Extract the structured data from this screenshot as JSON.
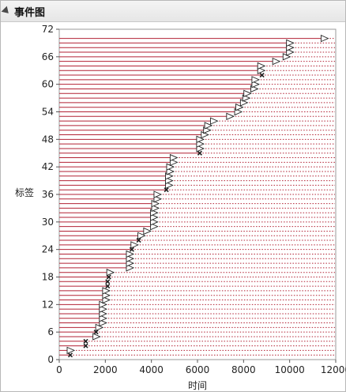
{
  "header": {
    "title": "事件图"
  },
  "chart_data": {
    "type": "event",
    "title": "事件图",
    "xlabel": "时间",
    "ylabel": "标签",
    "xlim": [
      0,
      12000
    ],
    "ylim": [
      0,
      72
    ],
    "xticks": [
      0,
      2000,
      4000,
      6000,
      8000,
      10000,
      12000
    ],
    "yticks": [
      0,
      6,
      12,
      18,
      24,
      30,
      36,
      42,
      48,
      54,
      60,
      66,
      72
    ],
    "colors": {
      "line": "#b22234",
      "dashed": "#b22234",
      "marker_stroke": "#222222"
    },
    "events": [
      {
        "label": 1,
        "start": 0,
        "end": 480,
        "marker": "x"
      },
      {
        "label": 2,
        "start": 0,
        "end": 480,
        "marker": "triangle"
      },
      {
        "label": 3,
        "start": 0,
        "end": 1150,
        "marker": "x"
      },
      {
        "label": 4,
        "start": 0,
        "end": 1150,
        "marker": "x"
      },
      {
        "label": 5,
        "start": 0,
        "end": 1600,
        "marker": "triangle"
      },
      {
        "label": 6,
        "start": 0,
        "end": 1600,
        "marker": "x"
      },
      {
        "label": 7,
        "start": 0,
        "end": 1720,
        "marker": "triangle"
      },
      {
        "label": 8,
        "start": 0,
        "end": 1880,
        "marker": "triangle"
      },
      {
        "label": 9,
        "start": 0,
        "end": 1880,
        "marker": "triangle"
      },
      {
        "label": 10,
        "start": 0,
        "end": 1880,
        "marker": "triangle"
      },
      {
        "label": 11,
        "start": 0,
        "end": 1880,
        "marker": "triangle"
      },
      {
        "label": 12,
        "start": 0,
        "end": 1880,
        "marker": "triangle"
      },
      {
        "label": 13,
        "start": 0,
        "end": 2020,
        "marker": "triangle"
      },
      {
        "label": 14,
        "start": 0,
        "end": 2020,
        "marker": "triangle"
      },
      {
        "label": 15,
        "start": 0,
        "end": 2020,
        "marker": "triangle"
      },
      {
        "label": 16,
        "start": 0,
        "end": 2100,
        "marker": "x"
      },
      {
        "label": 17,
        "start": 0,
        "end": 2100,
        "marker": "x"
      },
      {
        "label": 18,
        "start": 0,
        "end": 2150,
        "marker": "x"
      },
      {
        "label": 19,
        "start": 0,
        "end": 2200,
        "marker": "triangle"
      },
      {
        "label": 20,
        "start": 0,
        "end": 3050,
        "marker": "triangle"
      },
      {
        "label": 21,
        "start": 0,
        "end": 3050,
        "marker": "triangle"
      },
      {
        "label": 22,
        "start": 0,
        "end": 3050,
        "marker": "triangle"
      },
      {
        "label": 23,
        "start": 0,
        "end": 3050,
        "marker": "triangle"
      },
      {
        "label": 24,
        "start": 0,
        "end": 3150,
        "marker": "x"
      },
      {
        "label": 25,
        "start": 0,
        "end": 3250,
        "marker": "triangle"
      },
      {
        "label": 26,
        "start": 0,
        "end": 3450,
        "marker": "x"
      },
      {
        "label": 27,
        "start": 0,
        "end": 3550,
        "marker": "triangle"
      },
      {
        "label": 28,
        "start": 0,
        "end": 3800,
        "marker": "triangle"
      },
      {
        "label": 29,
        "start": 0,
        "end": 4100,
        "marker": "triangle"
      },
      {
        "label": 30,
        "start": 0,
        "end": 4100,
        "marker": "triangle"
      },
      {
        "label": 31,
        "start": 0,
        "end": 4100,
        "marker": "triangle"
      },
      {
        "label": 32,
        "start": 0,
        "end": 4100,
        "marker": "triangle"
      },
      {
        "label": 33,
        "start": 0,
        "end": 4150,
        "marker": "triangle"
      },
      {
        "label": 34,
        "start": 0,
        "end": 4150,
        "marker": "triangle"
      },
      {
        "label": 35,
        "start": 0,
        "end": 4250,
        "marker": "triangle"
      },
      {
        "label": 36,
        "start": 0,
        "end": 4250,
        "marker": "triangle"
      },
      {
        "label": 37,
        "start": 0,
        "end": 4650,
        "marker": "x"
      },
      {
        "label": 38,
        "start": 0,
        "end": 4750,
        "marker": "triangle"
      },
      {
        "label": 39,
        "start": 0,
        "end": 4750,
        "marker": "triangle"
      },
      {
        "label": 40,
        "start": 0,
        "end": 4750,
        "marker": "triangle"
      },
      {
        "label": 41,
        "start": 0,
        "end": 4800,
        "marker": "triangle"
      },
      {
        "label": 42,
        "start": 0,
        "end": 4800,
        "marker": "triangle"
      },
      {
        "label": 43,
        "start": 0,
        "end": 4950,
        "marker": "triangle"
      },
      {
        "label": 44,
        "start": 0,
        "end": 4950,
        "marker": "triangle"
      },
      {
        "label": 45,
        "start": 0,
        "end": 6100,
        "marker": "x"
      },
      {
        "label": 46,
        "start": 0,
        "end": 6100,
        "marker": "triangle"
      },
      {
        "label": 47,
        "start": 0,
        "end": 6100,
        "marker": "triangle"
      },
      {
        "label": 48,
        "start": 0,
        "end": 6100,
        "marker": "triangle"
      },
      {
        "label": 49,
        "start": 0,
        "end": 6300,
        "marker": "triangle"
      },
      {
        "label": 50,
        "start": 0,
        "end": 6400,
        "marker": "triangle"
      },
      {
        "label": 51,
        "start": 0,
        "end": 6450,
        "marker": "triangle"
      },
      {
        "label": 52,
        "start": 0,
        "end": 6700,
        "marker": "triangle"
      },
      {
        "label": 53,
        "start": 0,
        "end": 7400,
        "marker": "triangle"
      },
      {
        "label": 54,
        "start": 0,
        "end": 7750,
        "marker": "triangle"
      },
      {
        "label": 55,
        "start": 0,
        "end": 7800,
        "marker": "triangle"
      },
      {
        "label": 56,
        "start": 0,
        "end": 8000,
        "marker": "triangle"
      },
      {
        "label": 57,
        "start": 0,
        "end": 8100,
        "marker": "triangle"
      },
      {
        "label": 58,
        "start": 0,
        "end": 8150,
        "marker": "triangle"
      },
      {
        "label": 59,
        "start": 0,
        "end": 8450,
        "marker": "triangle"
      },
      {
        "label": 60,
        "start": 0,
        "end": 8500,
        "marker": "triangle"
      },
      {
        "label": 61,
        "start": 0,
        "end": 8500,
        "marker": "triangle"
      },
      {
        "label": 62,
        "start": 0,
        "end": 8800,
        "marker": "x"
      },
      {
        "label": 63,
        "start": 0,
        "end": 8750,
        "marker": "triangle"
      },
      {
        "label": 64,
        "start": 0,
        "end": 8750,
        "marker": "triangle"
      },
      {
        "label": 65,
        "start": 0,
        "end": 9400,
        "marker": "triangle"
      },
      {
        "label": 66,
        "start": 0,
        "end": 9850,
        "marker": "triangle"
      },
      {
        "label": 67,
        "start": 0,
        "end": 10000,
        "marker": "triangle"
      },
      {
        "label": 68,
        "start": 0,
        "end": 10000,
        "marker": "triangle"
      },
      {
        "label": 69,
        "start": 0,
        "end": 10000,
        "marker": "triangle"
      },
      {
        "label": 70,
        "start": 0,
        "end": 11500,
        "marker": "triangle"
      }
    ]
  }
}
